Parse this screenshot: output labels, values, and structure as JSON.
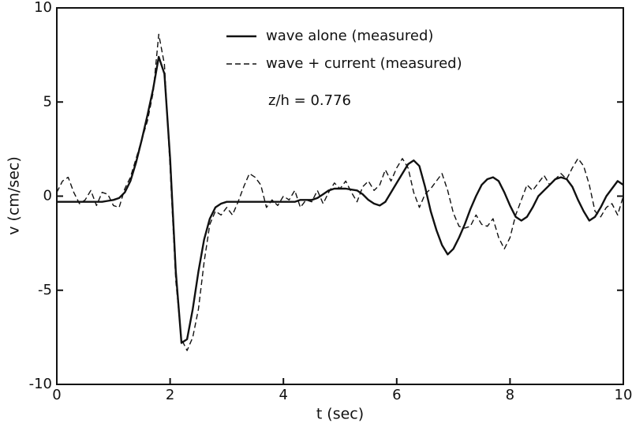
{
  "chart_data": {
    "type": "line",
    "annotation": "z/h = 0.776",
    "x_label": "t (sec)",
    "y_label": "v (cm/sec)",
    "x": [
      0,
      0.1,
      0.2,
      0.3,
      0.4,
      0.5,
      0.6,
      0.7,
      0.8,
      0.9,
      1,
      1.1,
      1.2,
      1.3,
      1.4,
      1.5,
      1.6,
      1.7,
      1.8,
      1.9,
      2,
      2.1,
      2.2,
      2.3,
      2.4,
      2.5,
      2.6,
      2.7,
      2.8,
      2.9,
      3,
      3.1,
      3.2,
      3.3,
      3.4,
      3.5,
      3.6,
      3.7,
      3.8,
      3.9,
      4,
      4.1,
      4.2,
      4.3,
      4.4,
      4.5,
      4.6,
      4.7,
      4.8,
      4.9,
      5,
      5.1,
      5.2,
      5.3,
      5.4,
      5.5,
      5.6,
      5.7,
      5.8,
      5.9,
      6,
      6.1,
      6.2,
      6.3,
      6.4,
      6.5,
      6.6,
      6.7,
      6.8,
      6.9,
      7,
      7.1,
      7.2,
      7.3,
      7.4,
      7.5,
      7.6,
      7.7,
      7.8,
      7.9,
      8,
      8.1,
      8.2,
      8.3,
      8.4,
      8.5,
      8.6,
      8.7,
      8.8,
      8.9,
      9,
      9.1,
      9.2,
      9.3,
      9.4,
      9.5,
      9.6,
      9.7,
      9.8,
      9.9,
      10
    ],
    "series": [
      {
        "name": "wave alone (measured)",
        "color": "#111111",
        "dash": false,
        "values": [
          -0.3,
          -0.3,
          -0.3,
          -0.3,
          -0.3,
          -0.3,
          -0.3,
          -0.3,
          -0.3,
          -0.25,
          -0.2,
          -0.1,
          0.2,
          0.8,
          1.8,
          3.0,
          4.3,
          5.7,
          7.4,
          6.5,
          2.0,
          -4.0,
          -7.8,
          -7.6,
          -6.0,
          -4.0,
          -2.3,
          -1.2,
          -0.6,
          -0.4,
          -0.3,
          -0.3,
          -0.3,
          -0.3,
          -0.3,
          -0.3,
          -0.3,
          -0.3,
          -0.3,
          -0.3,
          -0.3,
          -0.3,
          -0.3,
          -0.2,
          -0.2,
          -0.2,
          -0.1,
          0.1,
          0.3,
          0.4,
          0.4,
          0.4,
          0.35,
          0.3,
          0.1,
          -0.2,
          -0.4,
          -0.5,
          -0.3,
          0.2,
          0.7,
          1.2,
          1.7,
          1.9,
          1.6,
          0.5,
          -0.8,
          -1.8,
          -2.6,
          -3.1,
          -2.8,
          -2.2,
          -1.5,
          -0.7,
          0.0,
          0.6,
          0.9,
          1.0,
          0.8,
          0.2,
          -0.5,
          -1.1,
          -1.3,
          -1.1,
          -0.6,
          0.0,
          0.3,
          0.6,
          0.9,
          1.0,
          0.9,
          0.5,
          -0.2,
          -0.8,
          -1.3,
          -1.1,
          -0.6,
          0.0,
          0.4,
          0.8,
          0.6
        ]
      },
      {
        "name": "wave + current (measured)",
        "color": "#111111",
        "dash": true,
        "values": [
          0.2,
          0.8,
          1.0,
          0.2,
          -0.4,
          -0.2,
          0.3,
          -0.5,
          0.2,
          0.1,
          -0.5,
          -0.6,
          0.4,
          1.0,
          2.0,
          3.0,
          4.0,
          5.5,
          8.6,
          7.0,
          1.5,
          -4.5,
          -7.6,
          -8.2,
          -7.5,
          -6.0,
          -3.5,
          -1.5,
          -0.8,
          -1.0,
          -0.6,
          -1.0,
          -0.3,
          0.5,
          1.2,
          1.0,
          0.6,
          -0.6,
          -0.2,
          -0.5,
          0.0,
          -0.2,
          0.3,
          -0.6,
          -0.2,
          -0.3,
          0.3,
          -0.4,
          0.2,
          0.7,
          0.4,
          0.8,
          0.2,
          -0.3,
          0.5,
          0.8,
          0.3,
          0.6,
          1.4,
          0.8,
          1.5,
          2.0,
          1.5,
          0.2,
          -0.6,
          0.1,
          0.4,
          0.8,
          1.2,
          0.3,
          -0.9,
          -1.6,
          -1.7,
          -1.6,
          -1.0,
          -1.5,
          -1.6,
          -1.2,
          -2.2,
          -2.8,
          -2.2,
          -1.0,
          -0.2,
          0.6,
          0.3,
          0.7,
          1.1,
          0.6,
          0.9,
          1.2,
          0.9,
          1.5,
          2.0,
          1.6,
          0.6,
          -0.8,
          -1.1,
          -0.6,
          -0.4,
          -1.0,
          0.0
        ]
      }
    ],
    "xlim": [
      0,
      10
    ],
    "xticks": [
      0,
      2,
      4,
      6,
      8,
      10
    ],
    "ylim": [
      -10,
      10
    ],
    "yticks": [
      -10,
      -5,
      0,
      5,
      10
    ],
    "grid": false
  }
}
